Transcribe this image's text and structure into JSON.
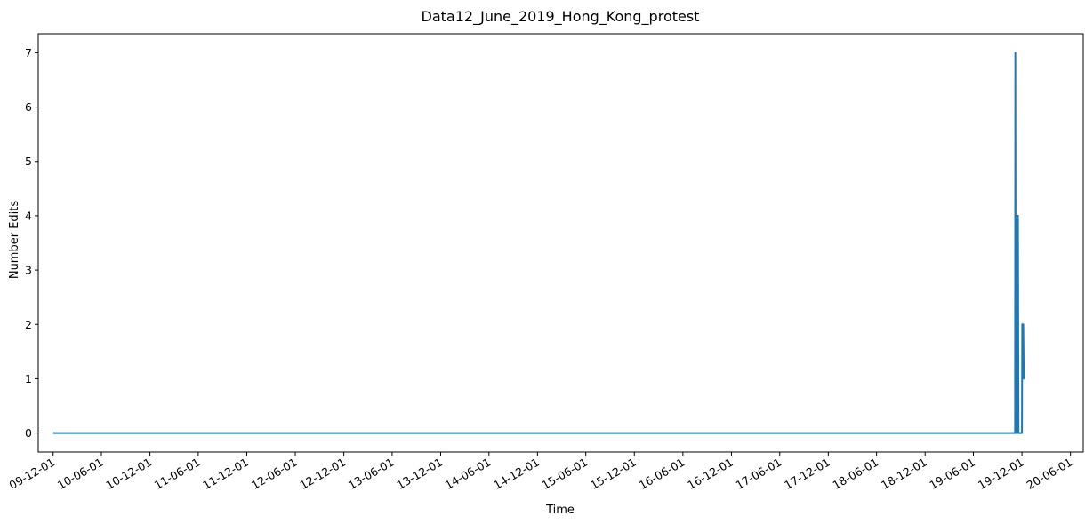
{
  "chart_data": {
    "type": "line",
    "title": "Data12_June_2019_Hong_Kong_protest",
    "xlabel": "Time",
    "ylabel": "Number Edits",
    "x_ticks": [
      "09-12-01",
      "10-06-01",
      "10-12-01",
      "11-06-01",
      "11-12-01",
      "12-06-01",
      "12-12-01",
      "13-06-01",
      "13-12-01",
      "14-06-01",
      "14-12-01",
      "15-06-01",
      "15-12-01",
      "16-06-01",
      "16-12-01",
      "17-06-01",
      "17-12-01",
      "18-06-01",
      "18-12-01",
      "19-06-01",
      "19-12-01",
      "20-06-01"
    ],
    "y_ticks": [
      "0",
      "1",
      "2",
      "3",
      "4",
      "5",
      "6",
      "7"
    ],
    "ylim": [
      -0.35,
      7.35
    ],
    "xlim": [
      "2009-10-06",
      "2020-07-19"
    ],
    "grid": false,
    "series": [
      {
        "color": "#1f77b4",
        "x": [
          "2009-12-01",
          "2019-11-05",
          "2019-11-06",
          "2019-11-08",
          "2019-11-10",
          "2019-11-12",
          "2019-11-14",
          "2019-11-16",
          "2019-11-18",
          "2019-11-20",
          "2019-11-22",
          "2019-12-01",
          "2019-12-02",
          "2019-12-04",
          "2019-12-06",
          "2019-12-08",
          "2019-12-10"
        ],
        "y": [
          0,
          0,
          7,
          0,
          0,
          4,
          0,
          4,
          0,
          0,
          0,
          0,
          2,
          2,
          2,
          1,
          1
        ]
      }
    ]
  }
}
